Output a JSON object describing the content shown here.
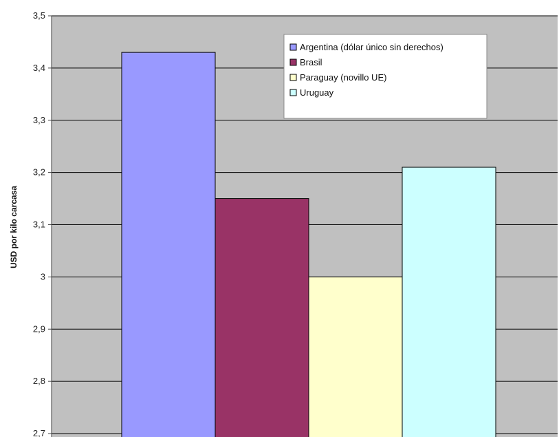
{
  "chart_data": {
    "type": "bar",
    "categories": [
      ""
    ],
    "series": [
      {
        "name": "Argentina (dólar único sin derechos)",
        "values": [
          3.43
        ],
        "color": "#9999ff"
      },
      {
        "name": "Brasil",
        "values": [
          3.15
        ],
        "color": "#993366"
      },
      {
        "name": "Paraguay (novillo UE)",
        "values": [
          3.0
        ],
        "color": "#ffffcc"
      },
      {
        "name": "Uruguay",
        "values": [
          3.21
        ],
        "color": "#ccffff"
      }
    ],
    "title": "",
    "xlabel": "",
    "ylabel": "USD por kilo carcasa",
    "ylim": [
      2.7,
      3.5
    ],
    "yticks": [
      "2,7",
      "2,8",
      "2,9",
      "3",
      "3,1",
      "3,2",
      "3,3",
      "3,4",
      "3,5"
    ],
    "grid": true,
    "legend_position": "top-right",
    "plot_background": "#c0c0c0"
  }
}
